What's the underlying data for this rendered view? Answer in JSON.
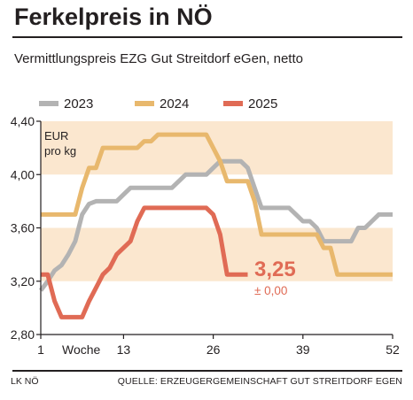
{
  "header": {
    "title": "Ferkelpreis in NÖ",
    "subtitle": "Vermittlungspreis EZG Gut Streitdorf eGen, netto"
  },
  "footer": {
    "left": "LK NÖ",
    "right": "QUELLE: ERZEUGERGEMEINSCHAFT GUT STREITDORF EGEN"
  },
  "colors": {
    "band": "#fbe7cf",
    "2023": "#b3b3b3",
    "2024": "#e8b86d",
    "2025": "#e06b55",
    "axis": "#231f20"
  },
  "chart_data": {
    "type": "line",
    "unit_label": [
      "EUR",
      "pro kg"
    ],
    "xlabel": "Woche",
    "xlim": [
      1,
      52
    ],
    "ylim": [
      2.8,
      4.4
    ],
    "xticks": [
      1,
      13,
      26,
      39,
      52
    ],
    "yticks": [
      2.8,
      3.2,
      3.6,
      4.0,
      4.4
    ],
    "ytick_labels": [
      "2,80",
      "3,20",
      "3,60",
      "4,00",
      "4,40"
    ],
    "bands": [
      [
        3.2,
        3.6
      ],
      [
        4.0,
        4.4
      ]
    ],
    "legend_position": "top",
    "series": [
      {
        "name": "2023",
        "color_key": "2023",
        "points": [
          [
            1,
            3.13
          ],
          [
            2,
            3.2
          ],
          [
            3,
            3.28
          ],
          [
            4,
            3.32
          ],
          [
            5,
            3.4
          ],
          [
            6,
            3.5
          ],
          [
            7,
            3.7
          ],
          [
            8,
            3.78
          ],
          [
            9,
            3.8
          ],
          [
            10,
            3.8
          ],
          [
            11,
            3.8
          ],
          [
            12,
            3.8
          ],
          [
            13,
            3.85
          ],
          [
            14,
            3.9
          ],
          [
            15,
            3.9
          ],
          [
            16,
            3.9
          ],
          [
            17,
            3.9
          ],
          [
            18,
            3.9
          ],
          [
            19,
            3.9
          ],
          [
            20,
            3.9
          ],
          [
            21,
            3.95
          ],
          [
            22,
            4.0
          ],
          [
            23,
            4.0
          ],
          [
            24,
            4.0
          ],
          [
            25,
            4.0
          ],
          [
            26,
            4.05
          ],
          [
            27,
            4.1
          ],
          [
            28,
            4.1
          ],
          [
            29,
            4.1
          ],
          [
            30,
            4.1
          ],
          [
            31,
            4.05
          ],
          [
            32,
            3.9
          ],
          [
            33,
            3.75
          ],
          [
            34,
            3.75
          ],
          [
            35,
            3.75
          ],
          [
            36,
            3.75
          ],
          [
            37,
            3.75
          ],
          [
            38,
            3.7
          ],
          [
            39,
            3.65
          ],
          [
            40,
            3.65
          ],
          [
            41,
            3.6
          ],
          [
            42,
            3.5
          ],
          [
            43,
            3.5
          ],
          [
            44,
            3.5
          ],
          [
            45,
            3.5
          ],
          [
            46,
            3.5
          ],
          [
            47,
            3.6
          ],
          [
            48,
            3.6
          ],
          [
            49,
            3.65
          ],
          [
            50,
            3.7
          ],
          [
            51,
            3.7
          ],
          [
            52,
            3.7
          ]
        ]
      },
      {
        "name": "2024",
        "color_key": "2024",
        "points": [
          [
            1,
            3.7
          ],
          [
            2,
            3.7
          ],
          [
            3,
            3.7
          ],
          [
            4,
            3.7
          ],
          [
            5,
            3.7
          ],
          [
            6,
            3.7
          ],
          [
            7,
            3.9
          ],
          [
            8,
            4.05
          ],
          [
            9,
            4.05
          ],
          [
            10,
            4.2
          ],
          [
            11,
            4.2
          ],
          [
            12,
            4.2
          ],
          [
            13,
            4.2
          ],
          [
            14,
            4.2
          ],
          [
            15,
            4.2
          ],
          [
            16,
            4.25
          ],
          [
            17,
            4.25
          ],
          [
            18,
            4.3
          ],
          [
            19,
            4.3
          ],
          [
            20,
            4.3
          ],
          [
            21,
            4.3
          ],
          [
            22,
            4.3
          ],
          [
            23,
            4.3
          ],
          [
            24,
            4.3
          ],
          [
            25,
            4.3
          ],
          [
            26,
            4.2
          ],
          [
            27,
            4.1
          ],
          [
            28,
            3.95
          ],
          [
            29,
            3.95
          ],
          [
            30,
            3.95
          ],
          [
            31,
            3.95
          ],
          [
            32,
            3.8
          ],
          [
            33,
            3.55
          ],
          [
            34,
            3.55
          ],
          [
            35,
            3.55
          ],
          [
            36,
            3.55
          ],
          [
            37,
            3.55
          ],
          [
            38,
            3.55
          ],
          [
            39,
            3.55
          ],
          [
            40,
            3.55
          ],
          [
            41,
            3.55
          ],
          [
            42,
            3.45
          ],
          [
            43,
            3.45
          ],
          [
            44,
            3.25
          ],
          [
            45,
            3.25
          ],
          [
            46,
            3.25
          ],
          [
            47,
            3.25
          ],
          [
            48,
            3.25
          ],
          [
            49,
            3.25
          ],
          [
            50,
            3.25
          ],
          [
            51,
            3.25
          ],
          [
            52,
            3.25
          ]
        ]
      },
      {
        "name": "2025",
        "color_key": "2025",
        "points": [
          [
            1,
            3.25
          ],
          [
            2,
            3.25
          ],
          [
            3,
            3.05
          ],
          [
            4,
            2.93
          ],
          [
            5,
            2.93
          ],
          [
            6,
            2.93
          ],
          [
            7,
            2.93
          ],
          [
            8,
            3.05
          ],
          [
            9,
            3.15
          ],
          [
            10,
            3.25
          ],
          [
            11,
            3.3
          ],
          [
            12,
            3.4
          ],
          [
            13,
            3.45
          ],
          [
            14,
            3.5
          ],
          [
            15,
            3.65
          ],
          [
            16,
            3.75
          ],
          [
            17,
            3.75
          ],
          [
            18,
            3.75
          ],
          [
            19,
            3.75
          ],
          [
            20,
            3.75
          ],
          [
            21,
            3.75
          ],
          [
            22,
            3.75
          ],
          [
            23,
            3.75
          ],
          [
            24,
            3.75
          ],
          [
            25,
            3.75
          ],
          [
            26,
            3.7
          ],
          [
            27,
            3.55
          ],
          [
            28,
            3.25
          ],
          [
            29,
            3.25
          ],
          [
            30,
            3.25
          ],
          [
            31,
            3.25
          ]
        ]
      }
    ],
    "annotations": {
      "latest_value": "3,25",
      "change": "± 0,00"
    }
  }
}
